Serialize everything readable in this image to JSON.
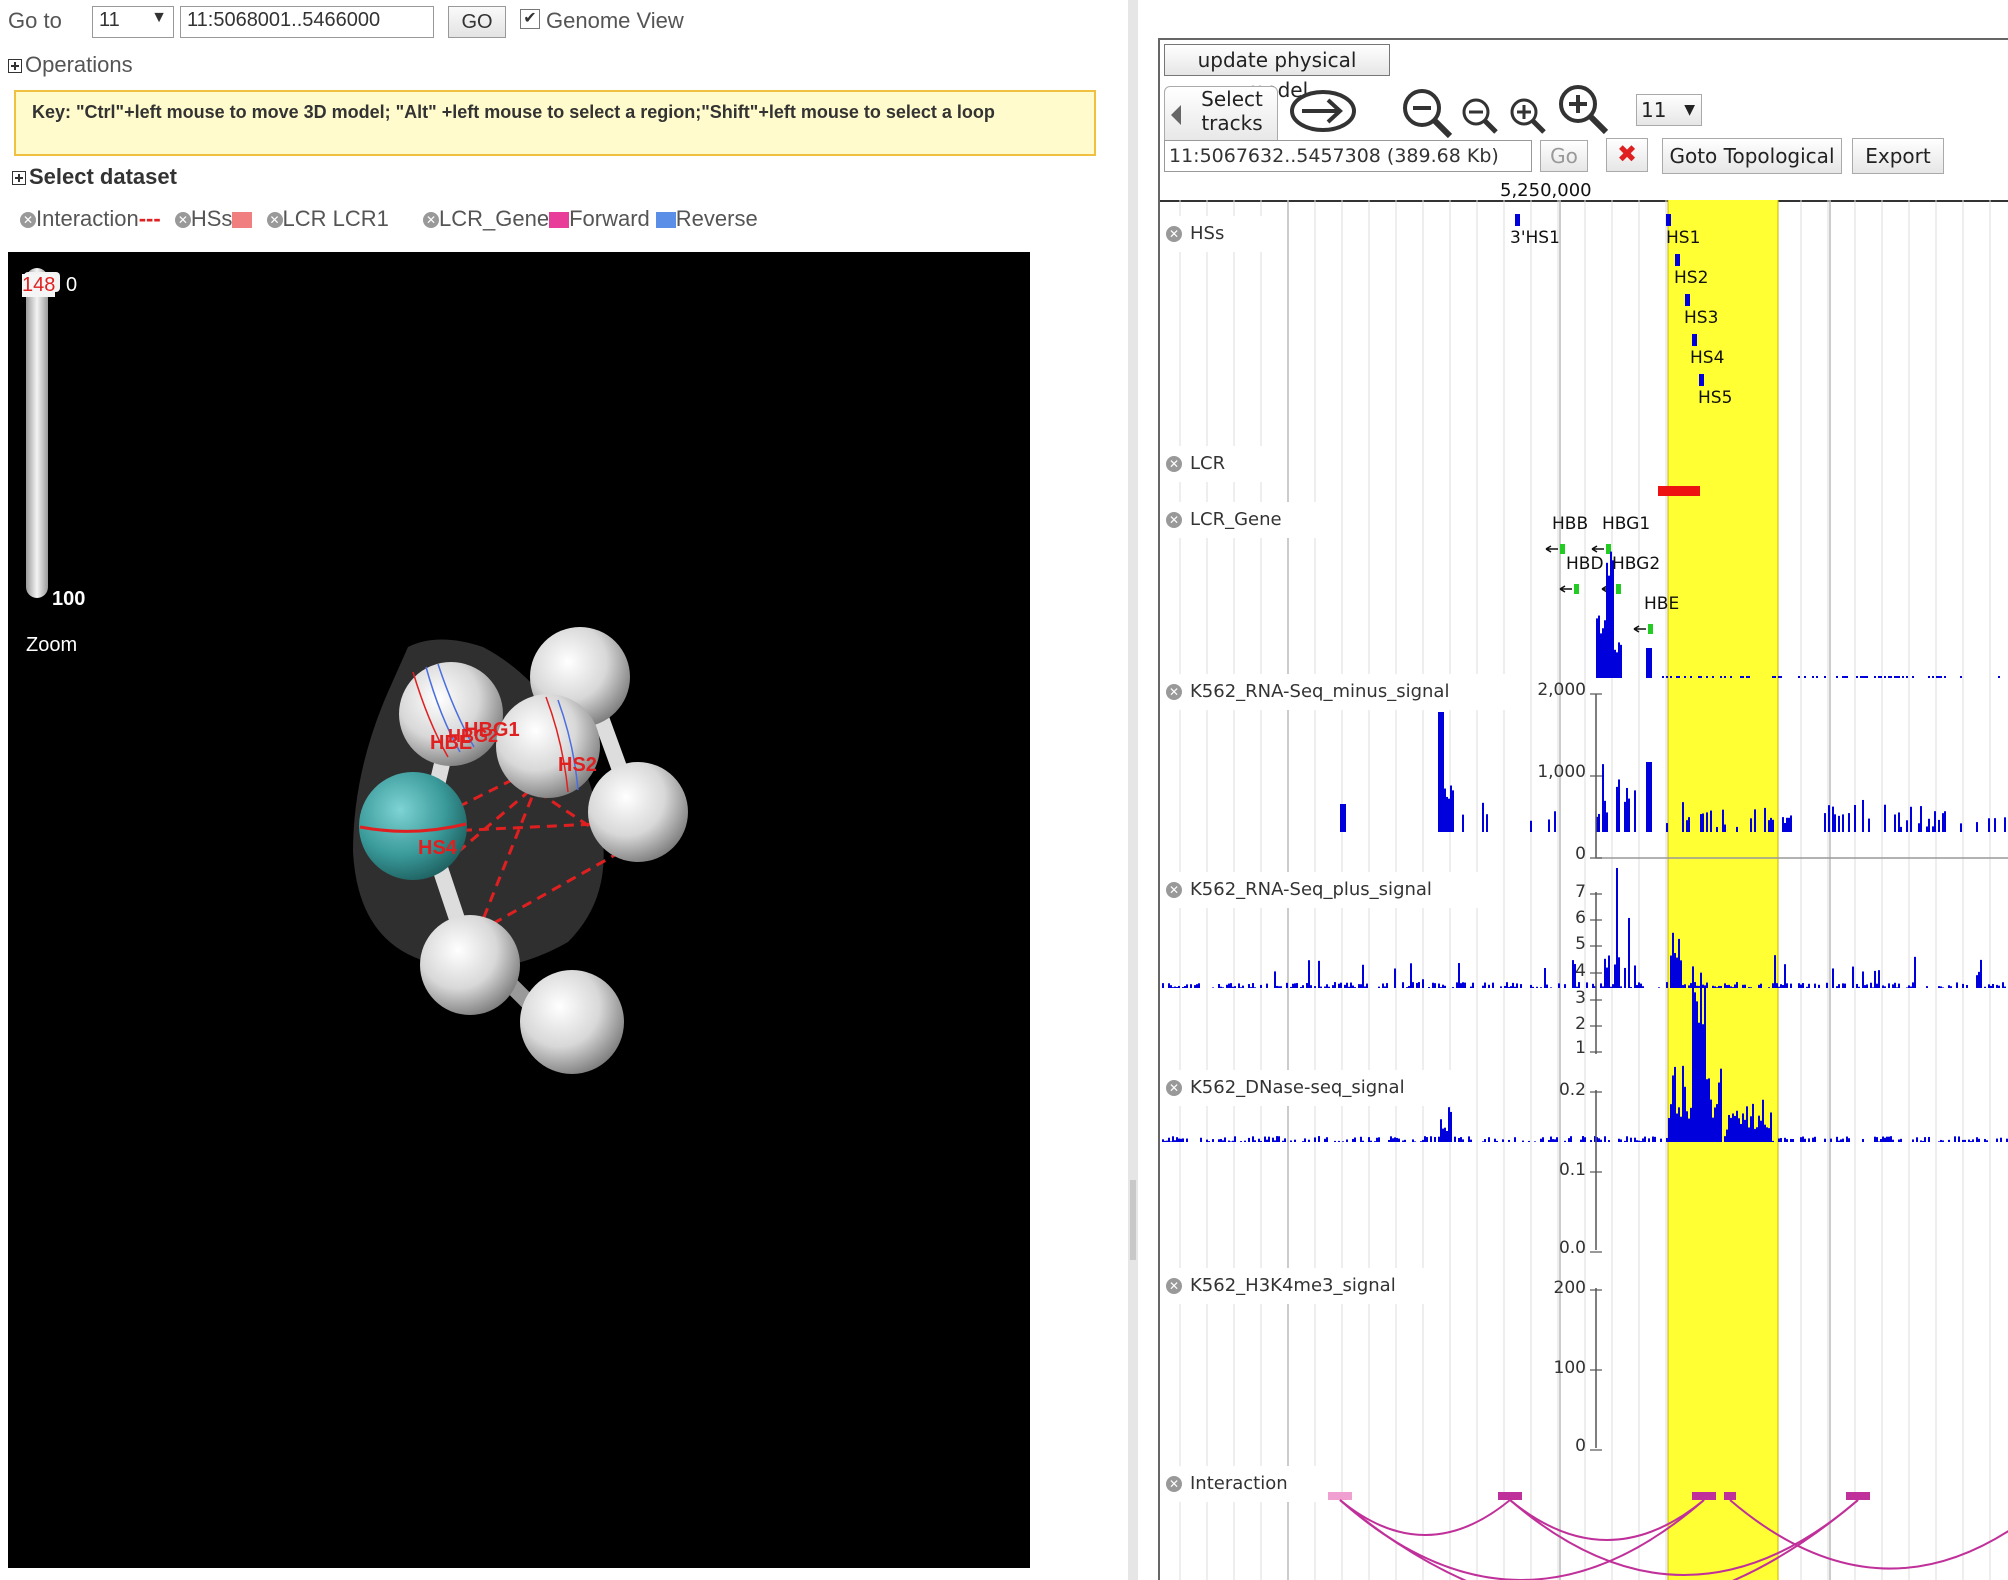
{
  "goto": {
    "label": "Go to",
    "chrom": "11",
    "range": "11:5068001..5466000",
    "go_label": "GO",
    "genome_view_label": "Genome View"
  },
  "operations_label": "Operations",
  "key_text": "Key: \"Ctrl\"+left mouse to move 3D model;   \"Alt\" +left mouse to select a region;\"Shift\"+left mouse to select a loop",
  "select_dataset_label": "Select dataset",
  "legend": {
    "interaction": "Interaction",
    "hss": "HSs",
    "lcr": "LCR LCR1",
    "lcr_gene": "LCR_Gene",
    "forward": "Forward",
    "reverse": "Reverse",
    "colors": {
      "interaction": "#e02020",
      "hss": "#f08080",
      "forward": "#e83e9a",
      "reverse": "#5b8ee6"
    }
  },
  "viewer": {
    "zoom_value": "148",
    "zoom_top_suffix": "0",
    "zoom_bottom": "100",
    "zoom_label": "Zoom",
    "labels": {
      "hbe": "HBE",
      "hbg1": "HBG1",
      "hbg2": "HBG2",
      "hs2": "HS2",
      "hs4": "HS4"
    }
  },
  "browser": {
    "update_label": "update physical model",
    "select_tracks_line1": "Select",
    "select_tracks_line2": "tracks",
    "chrom": "11",
    "location": "11:5067632..5457308 (389.68 Kb)",
    "go_label": "Go",
    "goto_topological_label": "Goto Topological",
    "export_label": "Export",
    "ruler_label": "5,250,000",
    "tracks": {
      "hss": "HSs",
      "lcr": "LCR",
      "lcr_gene": "LCR_Gene",
      "rna_minus": "K562_RNA-Seq_minus_signal",
      "rna_plus": "K562_RNA-Seq_plus_signal",
      "dnase": "K562_DNase-seq_signal",
      "h3k4me3": "K562_H3K4me3_signal",
      "interaction": "Interaction"
    },
    "hs_features": [
      "3'HS1",
      "HS1",
      "HS2",
      "HS3",
      "HS4",
      "HS5"
    ],
    "genes": [
      "HBB",
      "HBG1",
      "HBD",
      "HBG2",
      "HBE"
    ],
    "axis": {
      "rna_minus": [
        "2,000",
        "1,000",
        "0"
      ],
      "rna_plus": [
        "7",
        "6",
        "5",
        "4",
        "3",
        "2",
        "1"
      ],
      "dnase": [
        "0.2",
        "0.1",
        "0.0"
      ],
      "h3k4me3": [
        "200",
        "100",
        "0"
      ]
    },
    "colors": {
      "highlight": "#ffff33",
      "signal": "#0000dd",
      "lcr": "#ee1111",
      "gene": "#22cc22",
      "arc": "#c0309a"
    }
  }
}
